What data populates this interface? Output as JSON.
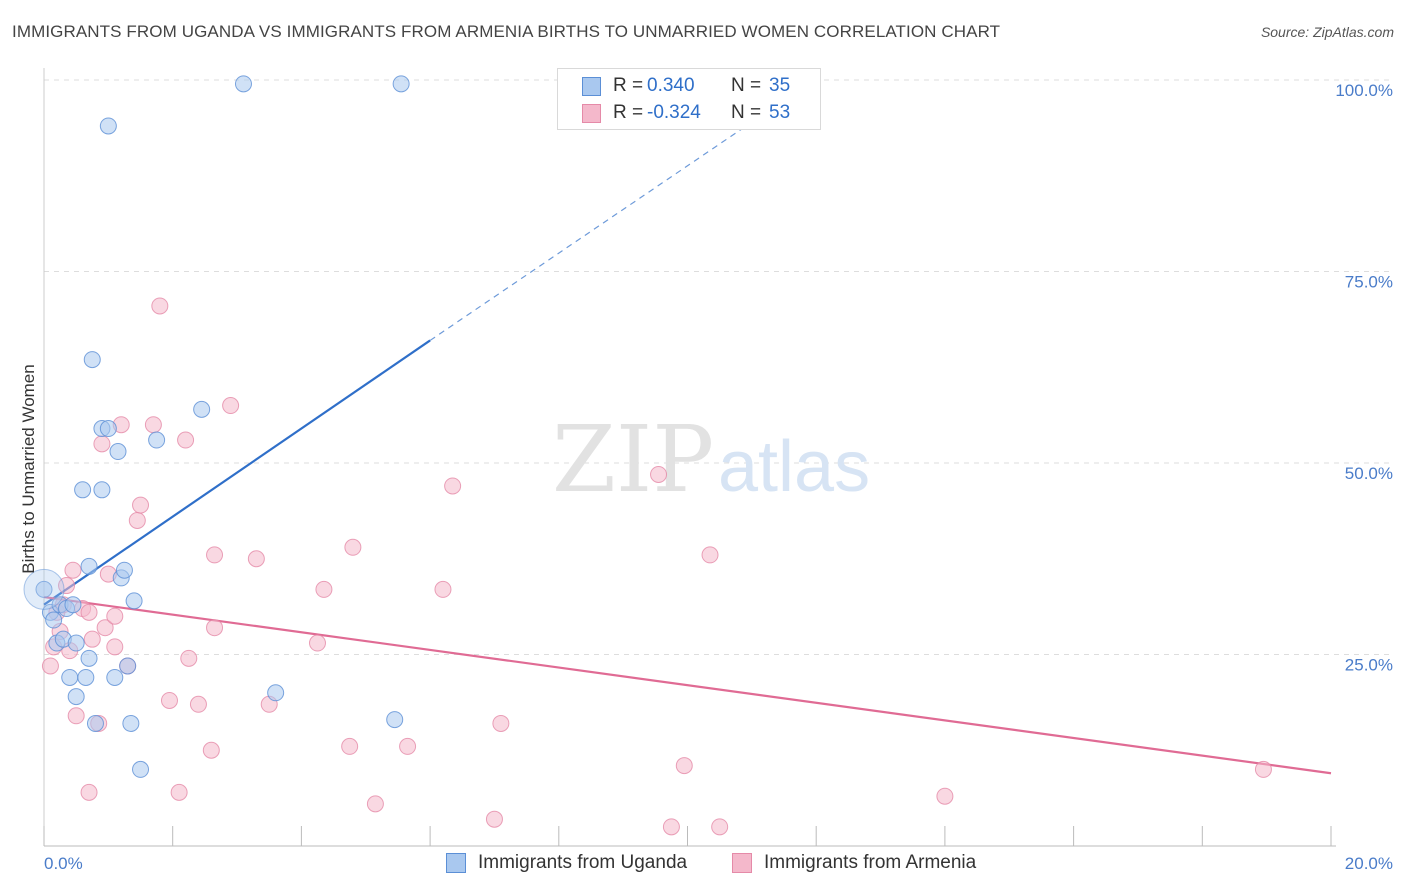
{
  "title": "IMMIGRANTS FROM UGANDA VS IMMIGRANTS FROM ARMENIA BIRTHS TO UNMARRIED WOMEN CORRELATION CHART",
  "source": "Source: ZipAtlas.com",
  "watermark": {
    "zip": "ZIP",
    "atlas": "atlas"
  },
  "colors": {
    "uganda_fill": "#a9c8ef",
    "uganda_stroke": "#5b8fd6",
    "uganda_line": "#2f6fc9",
    "armenia_fill": "#f4b8cb",
    "armenia_stroke": "#e58aa8",
    "armenia_line": "#e06b94",
    "grid": "#dddddd",
    "axis_text": "#4a7cc9"
  },
  "legend_top": [
    {
      "r_label": "R =",
      "r_value": "0.340",
      "n_label": "N =",
      "n_value": "35"
    },
    {
      "r_label": "R =",
      "r_value": "-0.324",
      "n_label": "N =",
      "n_value": "53"
    }
  ],
  "legend_bottom": [
    {
      "label": "Immigrants from Uganda"
    },
    {
      "label": "Immigrants from Armenia"
    }
  ],
  "chart_data": {
    "type": "scatter",
    "title": "IMMIGRANTS FROM UGANDA VS IMMIGRANTS FROM ARMENIA BIRTHS TO UNMARRIED WOMEN CORRELATION CHART",
    "xlabel": "",
    "ylabel": "Births to Unmarried Women",
    "xlim": [
      0,
      20
    ],
    "ylim": [
      0,
      100
    ],
    "x_tick_labels": [
      "0.0%",
      "20.0%"
    ],
    "y_ticks": [
      25,
      50,
      75,
      100
    ],
    "y_tick_labels": [
      "25.0%",
      "50.0%",
      "75.0%",
      "100.0%"
    ],
    "series": [
      {
        "name": "Immigrants from Uganda",
        "r": 0.34,
        "n": 35,
        "trend": {
          "x0": 0,
          "y0": 31.5,
          "x1": 6.0,
          "y1": 66.0,
          "dash_to_x": 11.0,
          "dash_to_y": 94.5
        },
        "points": [
          [
            0.0,
            33.5
          ],
          [
            0.1,
            30.5
          ],
          [
            0.15,
            29.5
          ],
          [
            0.2,
            26.5
          ],
          [
            0.25,
            31.5
          ],
          [
            0.3,
            27.0
          ],
          [
            0.35,
            31.0
          ],
          [
            0.4,
            22.0
          ],
          [
            0.45,
            31.5
          ],
          [
            0.5,
            19.5
          ],
          [
            0.6,
            46.5
          ],
          [
            0.65,
            22.0
          ],
          [
            0.7,
            24.5
          ],
          [
            0.7,
            36.5
          ],
          [
            0.75,
            63.5
          ],
          [
            0.8,
            16.0
          ],
          [
            0.9,
            46.5
          ],
          [
            0.9,
            54.5
          ],
          [
            1.0,
            94.0
          ],
          [
            1.0,
            54.5
          ],
          [
            1.1,
            22.0
          ],
          [
            1.15,
            51.5
          ],
          [
            1.2,
            35.0
          ],
          [
            1.25,
            36.0
          ],
          [
            1.3,
            23.5
          ],
          [
            1.35,
            16.0
          ],
          [
            1.4,
            32.0
          ],
          [
            1.5,
            10.0
          ],
          [
            1.75,
            53.0
          ],
          [
            2.45,
            57.0
          ],
          [
            3.1,
            99.5
          ],
          [
            3.6,
            20.0
          ],
          [
            5.45,
            16.5
          ],
          [
            5.55,
            99.5
          ],
          [
            0.5,
            26.5
          ]
        ]
      },
      {
        "name": "Immigrants from Armenia",
        "r": -0.324,
        "n": 53,
        "trend": {
          "x0": 0,
          "y0": 32.5,
          "x1": 20,
          "y1": 9.5
        },
        "points": [
          [
            0.1,
            23.5
          ],
          [
            0.15,
            26.0
          ],
          [
            0.2,
            30.5
          ],
          [
            0.25,
            28.0
          ],
          [
            0.3,
            31.5
          ],
          [
            0.35,
            34.0
          ],
          [
            0.4,
            25.5
          ],
          [
            0.45,
            36.0
          ],
          [
            0.5,
            17.0
          ],
          [
            0.6,
            31.0
          ],
          [
            0.7,
            30.5
          ],
          [
            0.7,
            7.0
          ],
          [
            0.75,
            27.0
          ],
          [
            0.85,
            16.0
          ],
          [
            0.9,
            52.5
          ],
          [
            0.95,
            28.5
          ],
          [
            1.0,
            35.5
          ],
          [
            1.1,
            26.0
          ],
          [
            1.1,
            30.0
          ],
          [
            1.2,
            55.0
          ],
          [
            1.3,
            23.5
          ],
          [
            1.45,
            42.5
          ],
          [
            1.5,
            44.5
          ],
          [
            1.7,
            55.0
          ],
          [
            1.8,
            70.5
          ],
          [
            1.95,
            19.0
          ],
          [
            2.1,
            7.0
          ],
          [
            2.2,
            53.0
          ],
          [
            2.25,
            24.5
          ],
          [
            2.4,
            18.5
          ],
          [
            2.6,
            12.5
          ],
          [
            2.65,
            38.0
          ],
          [
            2.65,
            28.5
          ],
          [
            2.9,
            57.5
          ],
          [
            3.3,
            37.5
          ],
          [
            3.5,
            18.5
          ],
          [
            4.25,
            26.5
          ],
          [
            4.35,
            33.5
          ],
          [
            4.75,
            13.0
          ],
          [
            4.8,
            39.0
          ],
          [
            5.15,
            5.5
          ],
          [
            5.65,
            13.0
          ],
          [
            6.2,
            33.5
          ],
          [
            6.35,
            47.0
          ],
          [
            7.0,
            3.5
          ],
          [
            7.1,
            16.0
          ],
          [
            9.55,
            48.5
          ],
          [
            9.75,
            2.5
          ],
          [
            9.95,
            10.5
          ],
          [
            10.35,
            38.0
          ],
          [
            10.5,
            2.5
          ],
          [
            14.0,
            6.5
          ],
          [
            18.95,
            10.0
          ]
        ]
      }
    ]
  }
}
